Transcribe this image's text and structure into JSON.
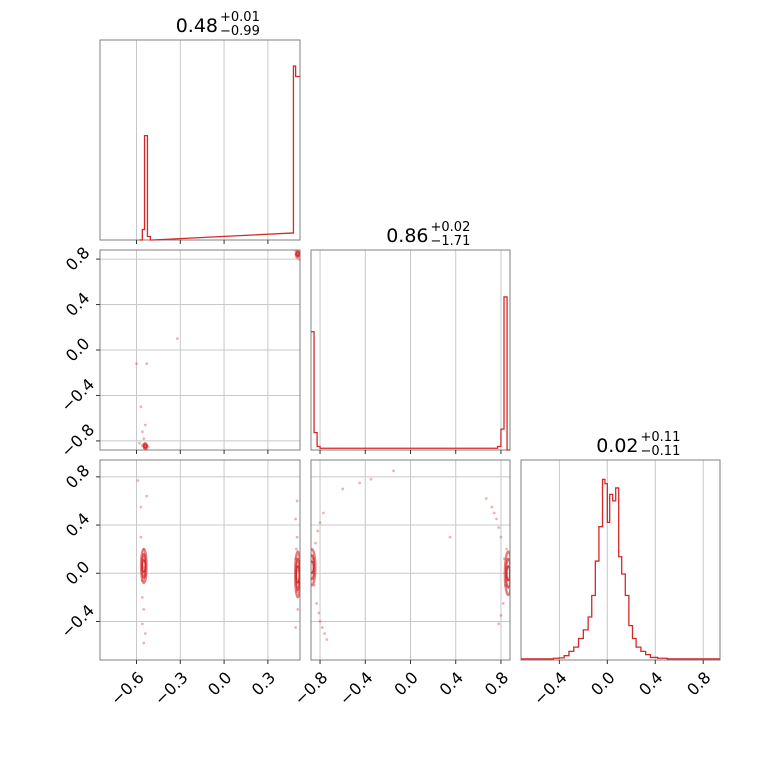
{
  "chart_data": {
    "type": "corner",
    "color": "#d62728",
    "titles": [
      {
        "value": "0.48",
        "plus": "+0.01",
        "minus": "−0.99"
      },
      {
        "value": "0.86",
        "plus": "+0.02",
        "minus": "−1.71"
      },
      {
        "value": "0.02",
        "plus": "+0.11",
        "minus": "−0.11"
      }
    ],
    "axes": {
      "p0": {
        "range": [
          -0.85,
          0.52
        ],
        "ticks": [
          -0.6,
          -0.3,
          0.0,
          0.3
        ],
        "ticklabels": [
          "−0.6",
          "−0.3",
          "0.0",
          "0.3"
        ]
      },
      "p1": {
        "range": [
          -0.88,
          0.88
        ],
        "ticks": [
          -0.8,
          -0.4,
          0.0,
          0.4,
          0.8
        ],
        "ticklabels": [
          "−0.8",
          "−0.4",
          "0.0",
          "0.4",
          "0.8"
        ]
      },
      "p2": {
        "range": [
          -0.72,
          0.94
        ],
        "ticks": [
          -0.4,
          0.0,
          0.4,
          0.8
        ],
        "ticklabels": [
          "−0.4",
          "0.0",
          "0.4",
          "0.8"
        ]
      }
    },
    "histograms": [
      {
        "param": "p0",
        "bins": [
          [
            -0.58,
            -0.56,
            0.0
          ],
          [
            -0.56,
            -0.545,
            0.06
          ],
          [
            -0.545,
            -0.525,
            0.6
          ],
          [
            -0.525,
            -0.505,
            0.02
          ],
          [
            -0.505,
            -0.49,
            0.0
          ],
          [
            0.46,
            0.475,
            0.04
          ],
          [
            0.475,
            0.49,
            1.0
          ],
          [
            0.49,
            0.52,
            0.94
          ]
        ],
        "ylim": [
          0,
          1.15
        ]
      },
      {
        "param": "p1",
        "bins": [
          [
            -0.88,
            -0.853,
            0.68
          ],
          [
            -0.853,
            -0.826,
            0.1
          ],
          [
            -0.826,
            -0.8,
            0.02
          ],
          [
            -0.8,
            0.77,
            0.01
          ],
          [
            0.77,
            0.8,
            0.02
          ],
          [
            0.8,
            0.827,
            0.12
          ],
          [
            0.827,
            0.854,
            0.88
          ],
          [
            0.854,
            0.88,
            0.0
          ]
        ],
        "ylim": [
          0,
          1.15
        ]
      },
      {
        "param": "p2",
        "bins": [
          [
            -0.72,
            -0.45,
            0.005
          ],
          [
            -0.45,
            -0.4,
            0.008
          ],
          [
            -0.4,
            -0.36,
            0.01
          ],
          [
            -0.36,
            -0.32,
            0.02
          ],
          [
            -0.32,
            -0.28,
            0.04
          ],
          [
            -0.28,
            -0.24,
            0.06
          ],
          [
            -0.24,
            -0.2,
            0.1
          ],
          [
            -0.2,
            -0.16,
            0.14
          ],
          [
            -0.16,
            -0.13,
            0.2
          ],
          [
            -0.13,
            -0.1,
            0.3
          ],
          [
            -0.1,
            -0.07,
            0.46
          ],
          [
            -0.07,
            -0.04,
            0.62
          ],
          [
            -0.04,
            -0.02,
            0.84
          ],
          [
            -0.02,
            0.0,
            0.82
          ],
          [
            0.0,
            0.02,
            0.64
          ],
          [
            0.02,
            0.045,
            0.77
          ],
          [
            0.045,
            0.07,
            0.74
          ],
          [
            0.07,
            0.095,
            0.8
          ],
          [
            0.095,
            0.12,
            0.48
          ],
          [
            0.12,
            0.15,
            0.4
          ],
          [
            0.15,
            0.18,
            0.3
          ],
          [
            0.18,
            0.21,
            0.16
          ],
          [
            0.21,
            0.24,
            0.1
          ],
          [
            0.24,
            0.28,
            0.06
          ],
          [
            0.28,
            0.32,
            0.04
          ],
          [
            0.32,
            0.36,
            0.025
          ],
          [
            0.36,
            0.42,
            0.012
          ],
          [
            0.42,
            0.5,
            0.008
          ],
          [
            0.5,
            0.94,
            0.005
          ]
        ],
        "ylim": [
          0,
          0.93
        ]
      }
    ],
    "scatter": [
      {
        "x": "p0",
        "y": "p1",
        "points": [
          [
            -0.58,
            -0.82
          ],
          [
            -0.56,
            -0.84
          ],
          [
            -0.55,
            -0.83
          ],
          [
            -0.545,
            -0.86
          ],
          [
            -0.54,
            -0.85
          ],
          [
            -0.535,
            -0.84
          ],
          [
            -0.53,
            -0.87
          ],
          [
            -0.52,
            -0.85
          ],
          [
            -0.56,
            -0.72
          ],
          [
            -0.54,
            -0.66
          ],
          [
            -0.55,
            -0.78
          ],
          [
            -0.57,
            -0.5
          ],
          [
            -0.53,
            -0.12
          ],
          [
            -0.6,
            -0.12
          ],
          [
            -0.32,
            0.1
          ],
          [
            0.49,
            0.84
          ],
          [
            0.495,
            0.82
          ],
          [
            0.5,
            0.86
          ],
          [
            0.51,
            0.83
          ],
          [
            0.505,
            0.85
          ],
          [
            0.515,
            0.8
          ],
          [
            0.49,
            0.87
          ],
          [
            0.5,
            0.81
          ]
        ]
      },
      {
        "x": "p0",
        "y": "p2",
        "points": [
          [
            -0.56,
            0.12
          ],
          [
            -0.55,
            0.05
          ],
          [
            -0.54,
            -0.02
          ],
          [
            -0.56,
            -0.06
          ],
          [
            -0.55,
            0.2
          ],
          [
            -0.57,
            0.3
          ],
          [
            -0.56,
            -0.2
          ],
          [
            -0.55,
            -0.3
          ],
          [
            -0.56,
            -0.42
          ],
          [
            -0.54,
            -0.5
          ],
          [
            -0.57,
            0.55
          ],
          [
            -0.53,
            0.64
          ],
          [
            -0.55,
            -0.58
          ],
          [
            -0.59,
            0.77
          ],
          [
            0.49,
            0.12
          ],
          [
            0.5,
            -0.15
          ],
          [
            0.5,
            0.3
          ],
          [
            0.505,
            -0.3
          ],
          [
            0.49,
            0.45
          ],
          [
            0.5,
            0.6
          ],
          [
            0.49,
            -0.45
          ],
          [
            0.51,
            0.02
          ],
          [
            0.495,
            0.2
          ]
        ]
      },
      {
        "x": "p1",
        "y": "p2",
        "points": [
          [
            -0.86,
            0.12
          ],
          [
            -0.85,
            -0.1
          ],
          [
            -0.84,
            0.25
          ],
          [
            -0.83,
            -0.25
          ],
          [
            -0.82,
            0.35
          ],
          [
            -0.81,
            -0.33
          ],
          [
            -0.8,
            -0.4
          ],
          [
            -0.78,
            -0.45
          ],
          [
            -0.76,
            -0.5
          ],
          [
            -0.74,
            -0.55
          ],
          [
            -0.8,
            0.42
          ],
          [
            -0.77,
            0.5
          ],
          [
            -0.6,
            0.7
          ],
          [
            -0.45,
            0.75
          ],
          [
            -0.35,
            0.78
          ],
          [
            0.83,
            0.12
          ],
          [
            0.84,
            -0.1
          ],
          [
            0.85,
            0.2
          ],
          [
            0.82,
            -0.25
          ],
          [
            0.8,
            0.3
          ],
          [
            0.78,
            0.38
          ],
          [
            0.76,
            0.45
          ],
          [
            0.74,
            0.5
          ],
          [
            0.72,
            0.55
          ],
          [
            0.8,
            -0.35
          ],
          [
            0.78,
            -0.42
          ],
          [
            0.67,
            0.62
          ],
          [
            0.35,
            0.3
          ],
          [
            -0.15,
            0.85
          ]
        ]
      }
    ],
    "contours": [
      {
        "x": "p0",
        "y": "p2",
        "center": [
          -0.55,
          0.06
        ],
        "rx": [
          0.006,
          0.012,
          0.018
        ],
        "ry": [
          0.05,
          0.1,
          0.14
        ]
      },
      {
        "x": "p0",
        "y": "p2",
        "center": [
          0.505,
          -0.01
        ],
        "rx": [
          0.006,
          0.012,
          0.018
        ],
        "ry": [
          0.07,
          0.13,
          0.19
        ]
      },
      {
        "x": "p1",
        "y": "p2",
        "center": [
          -0.872,
          0.05
        ],
        "rx": [
          0.01,
          0.02,
          0.03
        ],
        "ry": [
          0.05,
          0.1,
          0.15
        ]
      },
      {
        "x": "p1",
        "y": "p2",
        "center": [
          0.865,
          0.0
        ],
        "rx": [
          0.01,
          0.02,
          0.03
        ],
        "ry": [
          0.06,
          0.12,
          0.18
        ]
      },
      {
        "x": "p0",
        "y": "p1",
        "center": [
          -0.54,
          -0.845
        ],
        "rx": [
          0.006,
          0.012
        ],
        "ry": [
          0.012,
          0.025
        ]
      },
      {
        "x": "p0",
        "y": "p1",
        "center": [
          0.505,
          0.845
        ],
        "rx": [
          0.006,
          0.012
        ],
        "ry": [
          0.012,
          0.025
        ]
      }
    ],
    "grid": true
  }
}
